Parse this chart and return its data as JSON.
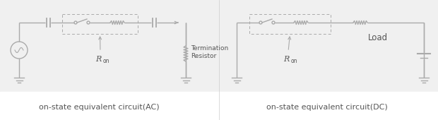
{
  "bg_color": "#f0f0f0",
  "line_color": "#aaaaaa",
  "text_color": "#555555",
  "figsize": [
    6.2,
    1.7
  ],
  "dpi": 100,
  "label_ac": "on-state equivalent circuit(AC)",
  "label_dc": "on-state equivalent circuit(DC)",
  "label_ron": "R",
  "label_on": "on",
  "label_termination": "Termination\nResistor",
  "label_load": "Load",
  "white_bg": "#ffffff"
}
